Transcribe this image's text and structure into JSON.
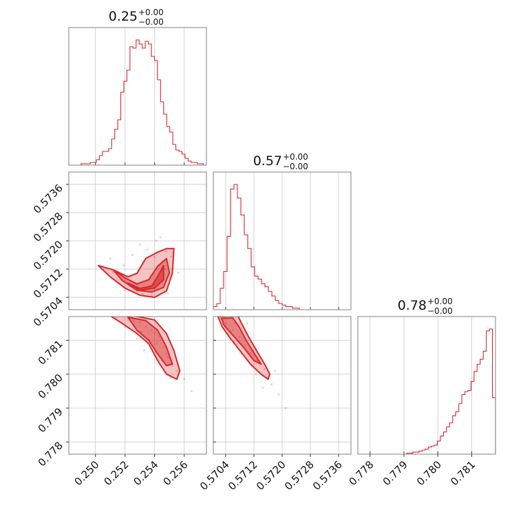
{
  "chart_data": {
    "type": "corner",
    "color": "#d62728",
    "parameters": [
      {
        "title_value": "0.25",
        "title_plus": "+0.00",
        "title_minus": "−0.00",
        "range": [
          0.2482,
          0.2575
        ],
        "ticks": [
          "0.250",
          "0.252",
          "0.254",
          "0.256"
        ],
        "tick_values": [
          0.25,
          0.252,
          0.254,
          0.256
        ],
        "hist_counts": [
          0,
          0,
          0,
          0,
          1,
          1,
          1,
          2,
          2,
          4,
          7,
          10,
          10,
          12,
          19,
          26,
          33,
          53,
          61,
          69,
          86,
          85,
          91,
          88,
          85,
          90,
          88,
          79,
          76,
          62,
          46,
          37,
          28,
          24,
          15,
          11,
          10,
          8,
          5,
          3,
          2,
          2,
          1,
          1,
          0
        ]
      },
      {
        "title_value": "0.57",
        "title_plus": "+0.00",
        "title_minus": "−0.00",
        "range": [
          0.57005,
          0.57395
        ],
        "ticks": [
          "0.5704",
          "0.5712",
          "0.5720",
          "0.5728",
          "0.5736"
        ],
        "tick_values": [
          0.5704,
          0.5712,
          0.572,
          0.5728,
          0.5736
        ],
        "hist_counts": [
          2,
          4,
          14,
          25,
          48,
          79,
          82,
          73,
          62,
          49,
          40,
          28,
          22,
          20,
          17,
          15,
          12,
          9,
          6,
          4,
          3,
          2,
          2,
          1,
          1,
          0,
          0,
          0,
          0,
          0,
          0,
          0,
          0,
          0,
          0,
          0,
          0,
          0,
          0,
          0
        ]
      },
      {
        "title_value": "0.78",
        "title_plus": "+0.00",
        "title_minus": "−0.00",
        "range": [
          0.77764,
          0.7817
        ],
        "ticks": [
          "0.778",
          "0.779",
          "0.780",
          "0.781"
        ],
        "tick_values": [
          0.778,
          0.779,
          0.78,
          0.781
        ],
        "hist_counts": [
          0,
          0,
          0,
          0,
          0,
          0,
          0,
          0,
          0,
          0,
          0,
          0,
          0,
          0,
          0,
          0,
          1,
          1,
          2,
          2,
          3,
          4,
          5,
          7,
          8,
          9,
          13,
          18,
          22,
          27,
          31,
          38,
          42,
          50,
          59,
          62,
          63,
          72,
          82,
          89,
          94,
          102,
          122,
          124,
          56
        ]
      }
    ],
    "panels_2d": [
      {
        "x_param": 0,
        "y_param": 1,
        "points": [
          [
            0.2505,
            0.57128
          ],
          [
            0.2512,
            0.5711
          ],
          [
            0.2518,
            0.5709
          ],
          [
            0.2524,
            0.57072
          ],
          [
            0.2528,
            0.57058
          ],
          [
            0.2532,
            0.5705
          ],
          [
            0.2538,
            0.57045
          ],
          [
            0.2542,
            0.5706
          ],
          [
            0.2545,
            0.57085
          ],
          [
            0.2547,
            0.5712
          ],
          [
            0.254,
            0.57155
          ],
          [
            0.2532,
            0.5714
          ],
          [
            0.2522,
            0.571
          ],
          [
            0.2548,
            0.5717
          ],
          [
            0.2551,
            0.57155
          ],
          [
            0.2552,
            0.5712
          ],
          [
            0.2536,
            0.5707
          ],
          [
            0.2528,
            0.5708
          ],
          [
            0.2515,
            0.57115
          ],
          [
            0.2546,
            0.57105
          ],
          [
            0.253,
            0.5719
          ],
          [
            0.2541,
            0.572
          ],
          [
            0.2525,
            0.5716
          ],
          [
            0.252,
            0.5706
          ],
          [
            0.2556,
            0.5711
          ],
          [
            0.2549,
            0.5705
          ],
          [
            0.2535,
            0.57175
          ],
          [
            0.2519,
            0.5713
          ],
          [
            0.251,
            0.5715
          ],
          [
            0.2544,
            0.5721
          ]
        ],
        "contours": [
          [
            [
              0.2502,
              0.5713
            ],
            [
              0.2512,
              0.57118
            ],
            [
              0.2522,
              0.57098
            ],
            [
              0.2528,
              0.57108
            ],
            [
              0.2534,
              0.5715
            ],
            [
              0.2542,
              0.57168
            ],
            [
              0.2548,
              0.57178
            ],
            [
              0.2553,
              0.57178
            ],
            [
              0.2552,
              0.57108
            ],
            [
              0.2548,
              0.57058
            ],
            [
              0.254,
              0.5704
            ],
            [
              0.253,
              0.57046
            ],
            [
              0.252,
              0.57066
            ],
            [
              0.251,
              0.57098
            ],
            [
              0.2502,
              0.5713
            ]
          ],
          [
            [
              0.2512,
              0.57118
            ],
            [
              0.252,
              0.57095
            ],
            [
              0.2528,
              0.57078
            ],
            [
              0.2536,
              0.5709
            ],
            [
              0.2542,
              0.57128
            ],
            [
              0.2548,
              0.5715
            ],
            [
              0.255,
              0.5711
            ],
            [
              0.2546,
              0.57068
            ],
            [
              0.2538,
              0.57055
            ],
            [
              0.2528,
              0.5706
            ],
            [
              0.2518,
              0.57088
            ],
            [
              0.2512,
              0.57118
            ]
          ],
          [
            [
              0.2522,
              0.5708
            ],
            [
              0.253,
              0.57065
            ],
            [
              0.2538,
              0.57072
            ],
            [
              0.2542,
              0.57098
            ],
            [
              0.2546,
              0.5713
            ],
            [
              0.2546,
              0.5709
            ],
            [
              0.254,
              0.57066
            ],
            [
              0.253,
              0.5706
            ],
            [
              0.2522,
              0.5708
            ]
          ]
        ]
      },
      {
        "x_param": 0,
        "y_param": 2,
        "points": [
          [
            0.2514,
            0.78168
          ],
          [
            0.2522,
            0.7816
          ],
          [
            0.253,
            0.78152
          ],
          [
            0.2538,
            0.7813
          ],
          [
            0.2543,
            0.7811
          ],
          [
            0.2546,
            0.7808
          ],
          [
            0.2549,
            0.7805
          ],
          [
            0.2552,
            0.78025
          ],
          [
            0.2541,
            0.7809
          ],
          [
            0.2534,
            0.7814
          ],
          [
            0.2526,
            0.78158
          ],
          [
            0.2548,
            0.7806
          ],
          [
            0.254,
            0.7812
          ],
          [
            0.2536,
            0.781
          ],
          [
            0.2555,
            0.7801
          ],
          [
            0.2531,
            0.78125
          ],
          [
            0.2545,
            0.7804
          ],
          [
            0.256,
            0.77985
          ],
          [
            0.2565,
            0.7795
          ],
          [
            0.252,
            0.7814
          ],
          [
            0.2533,
            0.7807
          ],
          [
            0.2551,
            0.7799
          ],
          [
            0.2542,
            0.7815
          ],
          [
            0.2528,
            0.78105
          ]
        ],
        "contours": [
          [
            [
              0.251,
              0.78172
            ],
            [
              0.2526,
              0.78172
            ],
            [
              0.254,
              0.7816
            ],
            [
              0.2548,
              0.7812
            ],
            [
              0.2553,
              0.7807
            ],
            [
              0.2557,
              0.7801
            ],
            [
              0.2555,
              0.77985
            ],
            [
              0.2548,
              0.78
            ],
            [
              0.2542,
              0.7804
            ],
            [
              0.2536,
              0.7809
            ],
            [
              0.2528,
              0.7812
            ],
            [
              0.2518,
              0.7815
            ],
            [
              0.251,
              0.78172
            ]
          ],
          [
            [
              0.2522,
              0.78168
            ],
            [
              0.2534,
              0.78158
            ],
            [
              0.2542,
              0.7813
            ],
            [
              0.2548,
              0.7808
            ],
            [
              0.2552,
              0.7803
            ],
            [
              0.2548,
              0.78025
            ],
            [
              0.2542,
              0.7806
            ],
            [
              0.2536,
              0.781
            ],
            [
              0.2528,
              0.7813
            ],
            [
              0.2522,
              0.78168
            ]
          ]
        ]
      },
      {
        "x_param": 1,
        "y_param": 2,
        "points": [
          [
            0.57025,
            0.78165
          ],
          [
            0.5704,
            0.7815
          ],
          [
            0.5706,
            0.7813
          ],
          [
            0.5708,
            0.7811
          ],
          [
            0.57095,
            0.78085
          ],
          [
            0.5711,
            0.7806
          ],
          [
            0.5713,
            0.7804
          ],
          [
            0.5715,
            0.78015
          ],
          [
            0.5716,
            0.7799
          ],
          [
            0.57045,
            0.7812
          ],
          [
            0.5707,
            0.7815
          ],
          [
            0.571,
            0.7812
          ],
          [
            0.5712,
            0.7808
          ],
          [
            0.57085,
            0.7806
          ],
          [
            0.5714,
            0.7803
          ],
          [
            0.5717,
            0.7797
          ],
          [
            0.5719,
            0.7794
          ],
          [
            0.5721,
            0.779
          ],
          [
            0.57035,
            0.78168
          ],
          [
            0.57065,
            0.78095
          ],
          [
            0.57125,
            0.78
          ],
          [
            0.5718,
            0.7801
          ],
          [
            0.571,
            0.7815
          ],
          [
            0.57145,
            0.7796
          ]
        ],
        "contours": [
          [
            [
              0.57018,
              0.7817
            ],
            [
              0.57075,
              0.78172
            ],
            [
              0.57085,
              0.7815
            ],
            [
              0.57105,
              0.7811
            ],
            [
              0.5713,
              0.78065
            ],
            [
              0.5715,
              0.7803
            ],
            [
              0.57165,
              0.78
            ],
            [
              0.5716,
              0.77985
            ],
            [
              0.5714,
              0.78
            ],
            [
              0.5711,
              0.7803
            ],
            [
              0.5708,
              0.7807
            ],
            [
              0.5705,
              0.7811
            ],
            [
              0.5703,
              0.7814
            ],
            [
              0.57018,
              0.7817
            ]
          ],
          [
            [
              0.57028,
              0.78165
            ],
            [
              0.5706,
              0.78166
            ],
            [
              0.57078,
              0.7814
            ],
            [
              0.57098,
              0.781
            ],
            [
              0.57125,
              0.78055
            ],
            [
              0.5714,
              0.7803
            ],
            [
              0.5712,
              0.7804
            ],
            [
              0.5709,
              0.7808
            ],
            [
              0.5706,
              0.78115
            ],
            [
              0.57035,
              0.78145
            ],
            [
              0.57028,
              0.78165
            ]
          ]
        ]
      }
    ]
  }
}
